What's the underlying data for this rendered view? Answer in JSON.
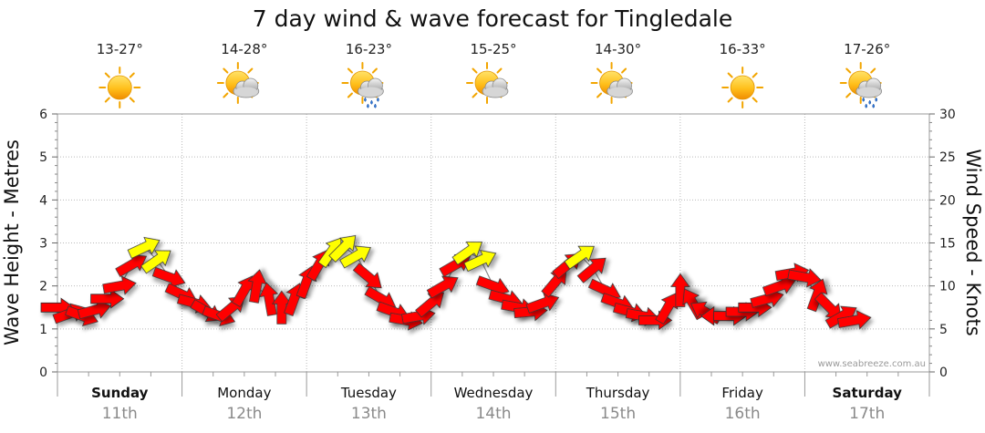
{
  "chart_data": {
    "type": "line",
    "title": "7 day wind & wave forecast for Tingledale",
    "ylabel": "Wave Height - Metres",
    "y2label": "Wind Speed - Knots",
    "ylim": [
      0,
      6
    ],
    "y2lim": [
      0,
      30
    ],
    "yticks": [
      "0",
      "1",
      "2",
      "3",
      "4",
      "5",
      "6"
    ],
    "y2ticks": [
      "0",
      "5",
      "10",
      "15",
      "20",
      "25",
      "30"
    ],
    "grid": true,
    "credit": "www.seabreeze.com.au",
    "days": [
      {
        "name": "Sunday",
        "date": "11th",
        "temp": "13-27°",
        "icon": "sun-icon",
        "bold": true
      },
      {
        "name": "Monday",
        "date": "12th",
        "temp": "14-28°",
        "icon": "partly-cloudy-icon",
        "bold": false
      },
      {
        "name": "Tuesday",
        "date": "13th",
        "temp": "16-23°",
        "icon": "showers-icon",
        "bold": false
      },
      {
        "name": "Wednesday",
        "date": "14th",
        "temp": "15-25°",
        "icon": "partly-cloudy-icon",
        "bold": false
      },
      {
        "name": "Thursday",
        "date": "15th",
        "temp": "14-30°",
        "icon": "partly-cloudy-icon",
        "bold": false
      },
      {
        "name": "Friday",
        "date": "16th",
        "temp": "16-33°",
        "icon": "sun-icon",
        "bold": false
      },
      {
        "name": "Saturday",
        "date": "17th",
        "temp": "17-26°",
        "icon": "showers-icon",
        "bold": true
      }
    ],
    "wind_series": {
      "name": "Wind speed (knots)",
      "colors": {
        "normal": "#ff0000",
        "strong": "#ffff00",
        "outline": "#333333"
      },
      "strong_threshold": 13,
      "points": [
        {
          "t": 0.0,
          "kts": 7.5,
          "dir": 0
        },
        {
          "t": 0.1,
          "kts": 6.8,
          "dir": -20
        },
        {
          "t": 0.2,
          "kts": 6.5,
          "dir": 20
        },
        {
          "t": 0.3,
          "kts": 7.2,
          "dir": -15
        },
        {
          "t": 0.4,
          "kts": 8.5,
          "dir": 0
        },
        {
          "t": 0.5,
          "kts": 10.0,
          "dir": -10
        },
        {
          "t": 0.6,
          "kts": 12.5,
          "dir": -30
        },
        {
          "t": 0.7,
          "kts": 14.5,
          "dir": -25
        },
        {
          "t": 0.8,
          "kts": 13.0,
          "dir": -35
        },
        {
          "t": 0.9,
          "kts": 11.0,
          "dir": 20
        },
        {
          "t": 1.0,
          "kts": 9.0,
          "dir": 25
        },
        {
          "t": 1.1,
          "kts": 8.0,
          "dir": 15
        },
        {
          "t": 1.2,
          "kts": 7.0,
          "dir": 30
        },
        {
          "t": 1.3,
          "kts": 6.5,
          "dir": 20
        },
        {
          "t": 1.4,
          "kts": 7.5,
          "dir": -40
        },
        {
          "t": 1.5,
          "kts": 9.5,
          "dir": -60
        },
        {
          "t": 1.6,
          "kts": 10.0,
          "dir": -80
        },
        {
          "t": 1.7,
          "kts": 8.5,
          "dir": -100
        },
        {
          "t": 1.8,
          "kts": 7.5,
          "dir": -90
        },
        {
          "t": 1.9,
          "kts": 8.5,
          "dir": -70
        },
        {
          "t": 2.0,
          "kts": 10.5,
          "dir": -70
        },
        {
          "t": 2.1,
          "kts": 12.5,
          "dir": -60
        },
        {
          "t": 2.2,
          "kts": 14.0,
          "dir": -55
        },
        {
          "t": 2.3,
          "kts": 14.5,
          "dir": -45
        },
        {
          "t": 2.4,
          "kts": 13.5,
          "dir": -30
        },
        {
          "t": 2.5,
          "kts": 11.0,
          "dir": 40
        },
        {
          "t": 2.6,
          "kts": 8.5,
          "dir": 30
        },
        {
          "t": 2.7,
          "kts": 7.0,
          "dir": 20
        },
        {
          "t": 2.8,
          "kts": 6.0,
          "dir": 10
        },
        {
          "t": 2.9,
          "kts": 6.5,
          "dir": -10
        },
        {
          "t": 3.0,
          "kts": 8.0,
          "dir": -40
        },
        {
          "t": 3.1,
          "kts": 10.0,
          "dir": -30
        },
        {
          "t": 3.2,
          "kts": 12.5,
          "dir": -30
        },
        {
          "t": 3.3,
          "kts": 14.0,
          "dir": -35
        },
        {
          "t": 3.4,
          "kts": 13.0,
          "dir": -25
        },
        {
          "t": 3.5,
          "kts": 10.0,
          "dir": 20
        },
        {
          "t": 3.6,
          "kts": 8.5,
          "dir": 15
        },
        {
          "t": 3.7,
          "kts": 7.5,
          "dir": 10
        },
        {
          "t": 3.8,
          "kts": 7.0,
          "dir": -5
        },
        {
          "t": 3.9,
          "kts": 8.0,
          "dir": -20
        },
        {
          "t": 4.0,
          "kts": 10.5,
          "dir": -50
        },
        {
          "t": 4.1,
          "kts": 12.5,
          "dir": -40
        },
        {
          "t": 4.2,
          "kts": 13.5,
          "dir": -35
        },
        {
          "t": 4.3,
          "kts": 12.0,
          "dir": -40
        },
        {
          "t": 4.4,
          "kts": 9.5,
          "dir": 25
        },
        {
          "t": 4.5,
          "kts": 8.0,
          "dir": 20
        },
        {
          "t": 4.6,
          "kts": 7.0,
          "dir": 15
        },
        {
          "t": 4.7,
          "kts": 6.5,
          "dir": 10
        },
        {
          "t": 4.8,
          "kts": 6.0,
          "dir": 0
        },
        {
          "t": 4.9,
          "kts": 7.5,
          "dir": -60
        },
        {
          "t": 5.0,
          "kts": 9.5,
          "dir": -90
        },
        {
          "t": 5.1,
          "kts": 8.0,
          "dir": -120
        },
        {
          "t": 5.2,
          "kts": 7.0,
          "dir": -150
        },
        {
          "t": 5.3,
          "kts": 6.5,
          "dir": -180
        },
        {
          "t": 5.4,
          "kts": 6.5,
          "dir": 0
        },
        {
          "t": 5.5,
          "kts": 7.0,
          "dir": 0
        },
        {
          "t": 5.6,
          "kts": 7.5,
          "dir": 0
        },
        {
          "t": 5.7,
          "kts": 8.5,
          "dir": -15
        },
        {
          "t": 5.8,
          "kts": 10.0,
          "dir": -20
        },
        {
          "t": 5.9,
          "kts": 11.5,
          "dir": -10
        },
        {
          "t": 6.0,
          "kts": 11.0,
          "dir": 10
        },
        {
          "t": 6.1,
          "kts": 9.0,
          "dir": -70
        },
        {
          "t": 6.2,
          "kts": 7.5,
          "dir": 45
        },
        {
          "t": 6.3,
          "kts": 6.5,
          "dir": -30
        },
        {
          "t": 6.4,
          "kts": 6.0,
          "dir": -10
        }
      ]
    }
  }
}
